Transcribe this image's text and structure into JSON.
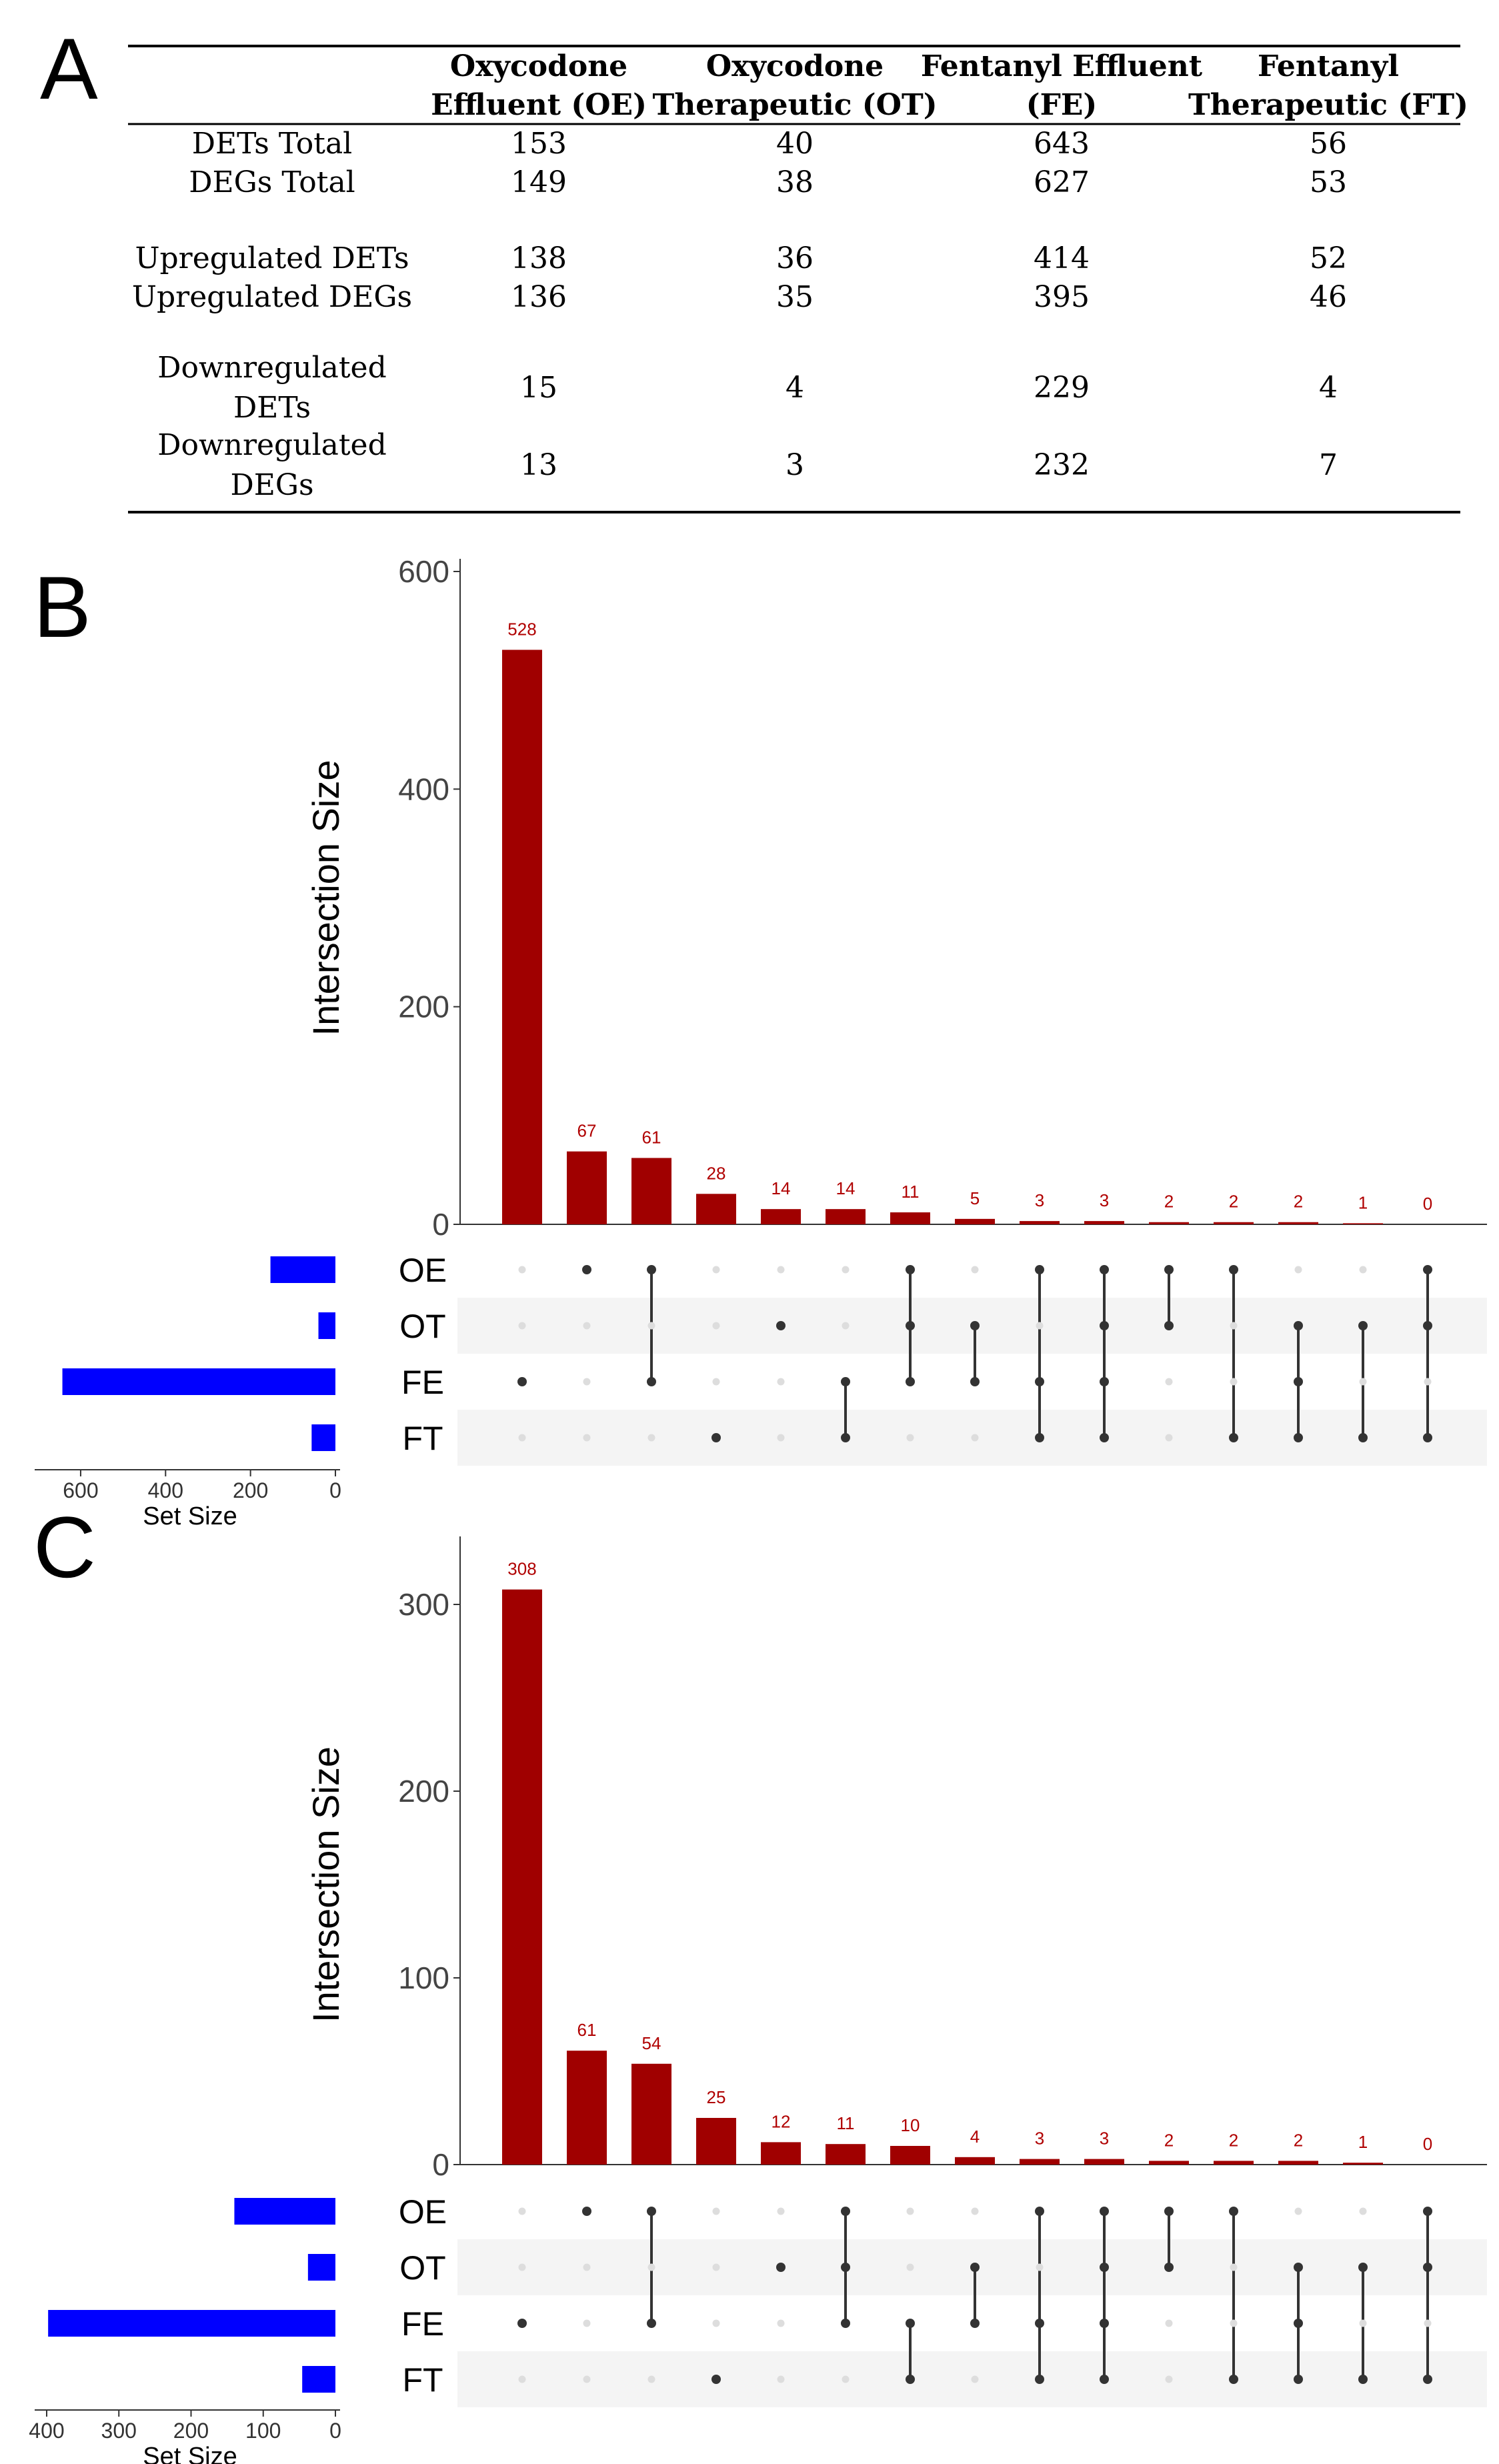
{
  "panels": {
    "a": "A",
    "b": "B",
    "c": "C"
  },
  "table": {
    "headers": [
      [
        "Oxycodone",
        "Effluent (OE)"
      ],
      [
        "Oxycodone",
        "Therapeutic (OT)"
      ],
      [
        "Fentanyl Effluent",
        "(FE)"
      ],
      [
        "Fentanyl",
        "Therapeutic (FT)"
      ]
    ],
    "rows": [
      {
        "label": [
          "DETs Total"
        ],
        "values": [
          "153",
          "40",
          "643",
          "56"
        ]
      },
      {
        "label": [
          "DEGs Total"
        ],
        "values": [
          "149",
          "38",
          "627",
          "53"
        ]
      },
      {
        "label": [
          "Upregulated DETs"
        ],
        "values": [
          "138",
          "36",
          "414",
          "52"
        ]
      },
      {
        "label": [
          "Upregulated DEGs"
        ],
        "values": [
          "136",
          "35",
          "395",
          "46"
        ]
      },
      {
        "label": [
          "Downregulated",
          "DETs"
        ],
        "values": [
          "15",
          "4",
          "229",
          "4"
        ]
      },
      {
        "label": [
          "Downregulated",
          "DEGs"
        ],
        "values": [
          "13",
          "3",
          "232",
          "7"
        ]
      }
    ]
  },
  "chart_data": [
    {
      "type": "upset",
      "panel": "B",
      "ylabel": "Intersection Size",
      "xlabel_sets": "Set Size",
      "ylim": [
        0,
        600
      ],
      "yticks": [
        0,
        200,
        400,
        600
      ],
      "set_size_ticks": [
        600,
        400,
        200,
        0
      ],
      "set_size_max": 680,
      "sets": [
        "OE",
        "OT",
        "FE",
        "FT"
      ],
      "set_sizes": [
        153,
        40,
        643,
        56
      ],
      "intersections": [
        {
          "value": 528,
          "label": "528",
          "members": [
            "FE"
          ]
        },
        {
          "value": 67,
          "label": "67",
          "members": [
            "OE"
          ]
        },
        {
          "value": 61,
          "label": "61",
          "members": [
            "OE",
            "FE"
          ]
        },
        {
          "value": 28,
          "label": "28",
          "members": [
            "FT"
          ]
        },
        {
          "value": 14,
          "label": "14",
          "members": [
            "OT"
          ]
        },
        {
          "value": 14,
          "label": "14",
          "members": [
            "FE",
            "FT"
          ]
        },
        {
          "value": 11,
          "label": "11",
          "members": [
            "OE",
            "OT",
            "FE"
          ]
        },
        {
          "value": 5,
          "label": "5",
          "members": [
            "OT",
            "FE"
          ]
        },
        {
          "value": 3,
          "label": "3",
          "members": [
            "OE",
            "FE",
            "FT"
          ]
        },
        {
          "value": 3,
          "label": "3",
          "members": [
            "OE",
            "OT",
            "FE",
            "FT"
          ]
        },
        {
          "value": 2,
          "label": "2",
          "members": [
            "OE",
            "OT"
          ]
        },
        {
          "value": 2,
          "label": "2",
          "members": [
            "OE",
            "FT"
          ]
        },
        {
          "value": 2,
          "label": "2",
          "members": [
            "OT",
            "FE",
            "FT"
          ]
        },
        {
          "value": 1,
          "label": "1",
          "members": [
            "OT",
            "FT"
          ]
        },
        {
          "value": 0,
          "label": "0",
          "members": [
            "OE",
            "OT",
            "FT"
          ]
        }
      ],
      "colors": {
        "bar": "#a00000",
        "setbar": "#0000ff",
        "dot": "#333333",
        "dot_empty": "#dddddd",
        "stripe": "#f4f4f4"
      }
    },
    {
      "type": "upset",
      "panel": "C",
      "ylabel": "Intersection Size",
      "xlabel_sets": "Set Size",
      "ylim": [
        0,
        300
      ],
      "yticks": [
        0,
        100,
        200,
        300
      ],
      "set_size_ticks": [
        400,
        300,
        200,
        100,
        0
      ],
      "set_size_max": 400,
      "sets": [
        "OE",
        "OT",
        "FE",
        "FT"
      ],
      "set_sizes": [
        140,
        38,
        398,
        46
      ],
      "intersections": [
        {
          "value": 308,
          "label": "308",
          "members": [
            "FE"
          ]
        },
        {
          "value": 61,
          "label": "61",
          "members": [
            "OE"
          ]
        },
        {
          "value": 54,
          "label": "54",
          "members": [
            "OE",
            "FE"
          ]
        },
        {
          "value": 25,
          "label": "25",
          "members": [
            "FT"
          ]
        },
        {
          "value": 12,
          "label": "12",
          "members": [
            "OT"
          ]
        },
        {
          "value": 11,
          "label": "11",
          "members": [
            "OE",
            "OT",
            "FE"
          ]
        },
        {
          "value": 10,
          "label": "10",
          "members": [
            "FE",
            "FT"
          ]
        },
        {
          "value": 4,
          "label": "4",
          "members": [
            "OT",
            "FE"
          ]
        },
        {
          "value": 3,
          "label": "3",
          "members": [
            "OE",
            "FE",
            "FT"
          ]
        },
        {
          "value": 3,
          "label": "3",
          "members": [
            "OE",
            "OT",
            "FE",
            "FT"
          ]
        },
        {
          "value": 2,
          "label": "2",
          "members": [
            "OE",
            "OT"
          ]
        },
        {
          "value": 2,
          "label": "2",
          "members": [
            "OE",
            "FT"
          ]
        },
        {
          "value": 2,
          "label": "2",
          "members": [
            "OT",
            "FE",
            "FT"
          ]
        },
        {
          "value": 1,
          "label": "1",
          "members": [
            "OT",
            "FT"
          ]
        },
        {
          "value": 0,
          "label": "0",
          "members": [
            "OE",
            "OT",
            "FT"
          ]
        }
      ],
      "colors": {
        "bar": "#a00000",
        "setbar": "#0000ff",
        "dot": "#333333",
        "dot_empty": "#dddddd",
        "stripe": "#f4f4f4"
      }
    }
  ]
}
